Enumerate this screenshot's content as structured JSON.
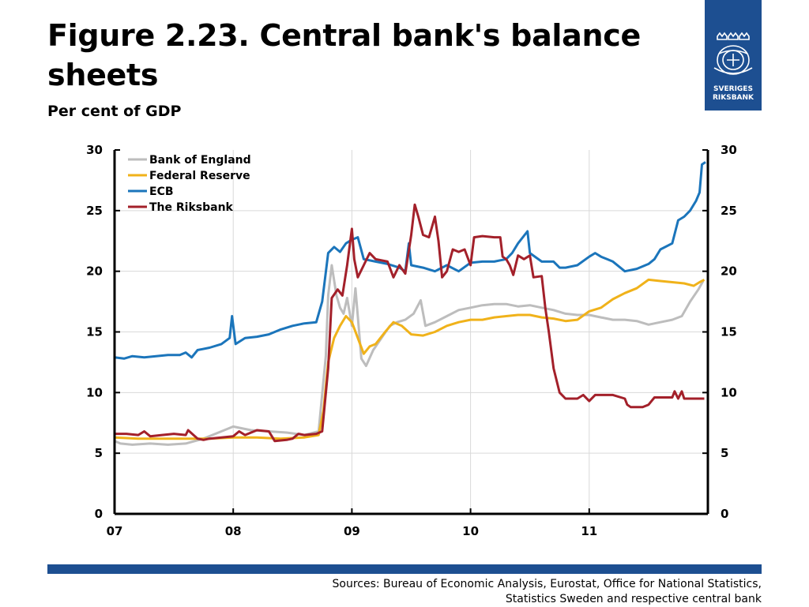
{
  "header": {
    "title": "Figure 2.23. Central bank's balance sheets",
    "subtitle": "Per cent of GDP"
  },
  "logo": {
    "line1": "SVERIGES",
    "line2": "RIKSBANK",
    "icon": "riksbank-crest-icon",
    "color": "#1d4f91"
  },
  "footer": {
    "source": "Sources: Bureau of Economic Analysis, Eurostat, Office for National Statistics, Statistics Sweden and respective central bank"
  },
  "chart_data": {
    "type": "line",
    "xlim": [
      2007,
      2012
    ],
    "ylim": [
      0,
      30
    ],
    "x_ticks": [
      {
        "value": 2007,
        "label": "07"
      },
      {
        "value": 2008,
        "label": "08"
      },
      {
        "value": 2009,
        "label": "09"
      },
      {
        "value": 2010,
        "label": "10"
      },
      {
        "value": 2011,
        "label": "11"
      }
    ],
    "y_ticks": [
      0,
      5,
      10,
      15,
      20,
      25,
      30
    ],
    "grid": true,
    "legend_position": "top-left",
    "series": [
      {
        "name": "Bank of England",
        "color": "#bdbdbd",
        "points": [
          [
            2007.0,
            6.0
          ],
          [
            2007.05,
            5.8
          ],
          [
            2007.15,
            5.7
          ],
          [
            2007.3,
            5.8
          ],
          [
            2007.45,
            5.7
          ],
          [
            2007.6,
            5.8
          ],
          [
            2007.75,
            6.2
          ],
          [
            2007.9,
            6.8
          ],
          [
            2008.0,
            7.2
          ],
          [
            2008.15,
            6.9
          ],
          [
            2008.3,
            6.8
          ],
          [
            2008.45,
            6.7
          ],
          [
            2008.6,
            6.5
          ],
          [
            2008.72,
            6.8
          ],
          [
            2008.78,
            13.0
          ],
          [
            2008.8,
            18.0
          ],
          [
            2008.83,
            20.5
          ],
          [
            2008.87,
            18.0
          ],
          [
            2008.9,
            17.0
          ],
          [
            2008.93,
            16.5
          ],
          [
            2008.96,
            17.8
          ],
          [
            2009.0,
            15.5
          ],
          [
            2009.03,
            18.6
          ],
          [
            2009.08,
            12.8
          ],
          [
            2009.12,
            12.2
          ],
          [
            2009.18,
            13.5
          ],
          [
            2009.25,
            14.5
          ],
          [
            2009.32,
            15.5
          ],
          [
            2009.38,
            15.8
          ],
          [
            2009.45,
            16.0
          ],
          [
            2009.52,
            16.5
          ],
          [
            2009.58,
            17.6
          ],
          [
            2009.62,
            15.5
          ],
          [
            2009.7,
            15.8
          ],
          [
            2009.8,
            16.3
          ],
          [
            2009.9,
            16.8
          ],
          [
            2010.0,
            17.0
          ],
          [
            2010.1,
            17.2
          ],
          [
            2010.2,
            17.3
          ],
          [
            2010.3,
            17.3
          ],
          [
            2010.4,
            17.1
          ],
          [
            2010.5,
            17.2
          ],
          [
            2010.6,
            17.0
          ],
          [
            2010.7,
            16.8
          ],
          [
            2010.8,
            16.5
          ],
          [
            2010.9,
            16.4
          ],
          [
            2011.0,
            16.4
          ],
          [
            2011.1,
            16.2
          ],
          [
            2011.2,
            16.0
          ],
          [
            2011.3,
            16.0
          ],
          [
            2011.4,
            15.9
          ],
          [
            2011.5,
            15.6
          ],
          [
            2011.6,
            15.8
          ],
          [
            2011.7,
            16.0
          ],
          [
            2011.78,
            16.3
          ],
          [
            2011.85,
            17.5
          ],
          [
            2011.92,
            18.5
          ],
          [
            2011.96,
            19.2
          ]
        ]
      },
      {
        "name": "Federal Reserve",
        "color": "#f0b21a",
        "points": [
          [
            2007.0,
            6.3
          ],
          [
            2007.2,
            6.2
          ],
          [
            2007.4,
            6.2
          ],
          [
            2007.6,
            6.2
          ],
          [
            2007.8,
            6.2
          ],
          [
            2008.0,
            6.3
          ],
          [
            2008.2,
            6.3
          ],
          [
            2008.4,
            6.2
          ],
          [
            2008.6,
            6.3
          ],
          [
            2008.72,
            6.5
          ],
          [
            2008.76,
            8.5
          ],
          [
            2008.8,
            12.5
          ],
          [
            2008.85,
            14.5
          ],
          [
            2008.9,
            15.5
          ],
          [
            2008.95,
            16.3
          ],
          [
            2009.0,
            15.8
          ],
          [
            2009.05,
            14.5
          ],
          [
            2009.1,
            13.2
          ],
          [
            2009.15,
            13.8
          ],
          [
            2009.2,
            14.0
          ],
          [
            2009.28,
            15.0
          ],
          [
            2009.35,
            15.8
          ],
          [
            2009.42,
            15.5
          ],
          [
            2009.5,
            14.8
          ],
          [
            2009.6,
            14.7
          ],
          [
            2009.7,
            15.0
          ],
          [
            2009.8,
            15.5
          ],
          [
            2009.9,
            15.8
          ],
          [
            2010.0,
            16.0
          ],
          [
            2010.1,
            16.0
          ],
          [
            2010.2,
            16.2
          ],
          [
            2010.3,
            16.3
          ],
          [
            2010.4,
            16.4
          ],
          [
            2010.5,
            16.4
          ],
          [
            2010.6,
            16.2
          ],
          [
            2010.7,
            16.1
          ],
          [
            2010.8,
            15.9
          ],
          [
            2010.9,
            16.0
          ],
          [
            2011.0,
            16.7
          ],
          [
            2011.1,
            17.0
          ],
          [
            2011.2,
            17.7
          ],
          [
            2011.3,
            18.2
          ],
          [
            2011.4,
            18.6
          ],
          [
            2011.5,
            19.3
          ],
          [
            2011.6,
            19.2
          ],
          [
            2011.7,
            19.1
          ],
          [
            2011.8,
            19.0
          ],
          [
            2011.88,
            18.8
          ],
          [
            2011.93,
            19.1
          ],
          [
            2011.97,
            19.3
          ]
        ]
      },
      {
        "name": "ECB",
        "color": "#1b75bb",
        "points": [
          [
            2007.0,
            12.9
          ],
          [
            2007.08,
            12.8
          ],
          [
            2007.15,
            13.0
          ],
          [
            2007.25,
            12.9
          ],
          [
            2007.35,
            13.0
          ],
          [
            2007.45,
            13.1
          ],
          [
            2007.55,
            13.1
          ],
          [
            2007.6,
            13.3
          ],
          [
            2007.65,
            12.9
          ],
          [
            2007.7,
            13.5
          ],
          [
            2007.8,
            13.7
          ],
          [
            2007.9,
            14.0
          ],
          [
            2007.97,
            14.5
          ],
          [
            2007.99,
            16.3
          ],
          [
            2008.02,
            14.0
          ],
          [
            2008.1,
            14.5
          ],
          [
            2008.2,
            14.6
          ],
          [
            2008.3,
            14.8
          ],
          [
            2008.4,
            15.2
          ],
          [
            2008.5,
            15.5
          ],
          [
            2008.6,
            15.7
          ],
          [
            2008.7,
            15.8
          ],
          [
            2008.75,
            17.5
          ],
          [
            2008.8,
            21.5
          ],
          [
            2008.85,
            22.0
          ],
          [
            2008.9,
            21.6
          ],
          [
            2008.95,
            22.3
          ],
          [
            2009.0,
            22.6
          ],
          [
            2009.05,
            22.8
          ],
          [
            2009.1,
            21.0
          ],
          [
            2009.2,
            20.8
          ],
          [
            2009.3,
            20.6
          ],
          [
            2009.4,
            20.3
          ],
          [
            2009.45,
            20.0
          ],
          [
            2009.48,
            22.3
          ],
          [
            2009.5,
            20.5
          ],
          [
            2009.6,
            20.3
          ],
          [
            2009.7,
            20.0
          ],
          [
            2009.8,
            20.5
          ],
          [
            2009.9,
            20.0
          ],
          [
            2010.0,
            20.7
          ],
          [
            2010.1,
            20.8
          ],
          [
            2010.2,
            20.8
          ],
          [
            2010.3,
            21.0
          ],
          [
            2010.35,
            21.5
          ],
          [
            2010.4,
            22.3
          ],
          [
            2010.48,
            23.3
          ],
          [
            2010.5,
            21.5
          ],
          [
            2010.6,
            20.8
          ],
          [
            2010.7,
            20.8
          ],
          [
            2010.75,
            20.3
          ],
          [
            2010.8,
            20.3
          ],
          [
            2010.9,
            20.5
          ],
          [
            2011.0,
            21.2
          ],
          [
            2011.05,
            21.5
          ],
          [
            2011.1,
            21.2
          ],
          [
            2011.15,
            21.0
          ],
          [
            2011.2,
            20.8
          ],
          [
            2011.3,
            20.0
          ],
          [
            2011.4,
            20.2
          ],
          [
            2011.5,
            20.6
          ],
          [
            2011.55,
            21.0
          ],
          [
            2011.6,
            21.8
          ],
          [
            2011.7,
            22.3
          ],
          [
            2011.75,
            24.2
          ],
          [
            2011.8,
            24.5
          ],
          [
            2011.85,
            25.0
          ],
          [
            2011.9,
            25.8
          ],
          [
            2011.93,
            26.5
          ],
          [
            2011.95,
            28.8
          ],
          [
            2011.98,
            29.0
          ]
        ]
      },
      {
        "name": "The Riksbank",
        "color": "#a3202a",
        "points": [
          [
            2007.0,
            6.6
          ],
          [
            2007.1,
            6.6
          ],
          [
            2007.2,
            6.5
          ],
          [
            2007.25,
            6.8
          ],
          [
            2007.3,
            6.4
          ],
          [
            2007.4,
            6.5
          ],
          [
            2007.5,
            6.6
          ],
          [
            2007.6,
            6.5
          ],
          [
            2007.62,
            6.9
          ],
          [
            2007.7,
            6.2
          ],
          [
            2007.75,
            6.1
          ],
          [
            2007.8,
            6.2
          ],
          [
            2007.9,
            6.3
          ],
          [
            2008.0,
            6.4
          ],
          [
            2008.05,
            6.8
          ],
          [
            2008.1,
            6.5
          ],
          [
            2008.2,
            6.9
          ],
          [
            2008.3,
            6.8
          ],
          [
            2008.35,
            6.0
          ],
          [
            2008.45,
            6.1
          ],
          [
            2008.5,
            6.2
          ],
          [
            2008.55,
            6.6
          ],
          [
            2008.6,
            6.5
          ],
          [
            2008.7,
            6.6
          ],
          [
            2008.75,
            6.8
          ],
          [
            2008.8,
            12.0
          ],
          [
            2008.83,
            17.8
          ],
          [
            2008.88,
            18.5
          ],
          [
            2008.92,
            18.0
          ],
          [
            2008.96,
            20.5
          ],
          [
            2009.0,
            23.5
          ],
          [
            2009.02,
            21.0
          ],
          [
            2009.05,
            19.5
          ],
          [
            2009.1,
            20.5
          ],
          [
            2009.15,
            21.5
          ],
          [
            2009.2,
            21.0
          ],
          [
            2009.3,
            20.8
          ],
          [
            2009.35,
            19.5
          ],
          [
            2009.4,
            20.5
          ],
          [
            2009.45,
            19.8
          ],
          [
            2009.5,
            23.0
          ],
          [
            2009.53,
            25.5
          ],
          [
            2009.56,
            24.5
          ],
          [
            2009.6,
            23.0
          ],
          [
            2009.65,
            22.8
          ],
          [
            2009.7,
            24.5
          ],
          [
            2009.73,
            22.5
          ],
          [
            2009.76,
            19.5
          ],
          [
            2009.8,
            20.0
          ],
          [
            2009.85,
            21.8
          ],
          [
            2009.9,
            21.6
          ],
          [
            2009.95,
            21.8
          ],
          [
            2010.0,
            20.5
          ],
          [
            2010.03,
            22.8
          ],
          [
            2010.1,
            22.9
          ],
          [
            2010.2,
            22.8
          ],
          [
            2010.25,
            22.8
          ],
          [
            2010.27,
            21.2
          ],
          [
            2010.3,
            21.0
          ],
          [
            2010.33,
            20.5
          ],
          [
            2010.36,
            19.7
          ],
          [
            2010.4,
            21.3
          ],
          [
            2010.45,
            21.0
          ],
          [
            2010.5,
            21.3
          ],
          [
            2010.53,
            19.5
          ],
          [
            2010.6,
            19.6
          ],
          [
            2010.63,
            17.0
          ],
          [
            2010.66,
            15.0
          ],
          [
            2010.7,
            12.0
          ],
          [
            2010.75,
            10.0
          ],
          [
            2010.8,
            9.5
          ],
          [
            2010.9,
            9.5
          ],
          [
            2010.95,
            9.8
          ],
          [
            2011.0,
            9.3
          ],
          [
            2011.05,
            9.8
          ],
          [
            2011.2,
            9.8
          ],
          [
            2011.3,
            9.5
          ],
          [
            2011.32,
            9.0
          ],
          [
            2011.35,
            8.8
          ],
          [
            2011.45,
            8.8
          ],
          [
            2011.5,
            9.0
          ],
          [
            2011.55,
            9.6
          ],
          [
            2011.6,
            9.6
          ],
          [
            2011.7,
            9.6
          ],
          [
            2011.72,
            10.1
          ],
          [
            2011.75,
            9.5
          ],
          [
            2011.78,
            10.1
          ],
          [
            2011.8,
            9.5
          ],
          [
            2011.9,
            9.5
          ],
          [
            2011.97,
            9.5
          ]
        ]
      }
    ]
  }
}
